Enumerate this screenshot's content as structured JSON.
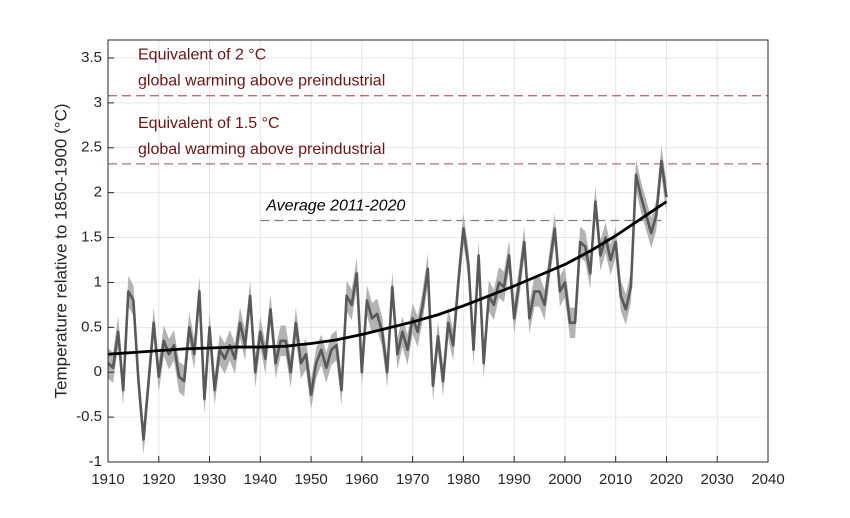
{
  "chart_data": {
    "type": "line",
    "ylabel": "Temperature relative to 1850-1900 (°C)",
    "xlim": [
      1910,
      2040
    ],
    "ylim": [
      -1,
      3.7
    ],
    "xticks": [
      1910,
      1920,
      1930,
      1940,
      1950,
      1960,
      1970,
      1980,
      1990,
      2000,
      2010,
      2020,
      2030,
      2040
    ],
    "yticks": [
      -1,
      -0.5,
      0,
      0.5,
      1,
      1.5,
      2,
      2.5,
      3,
      3.5
    ],
    "grid": true,
    "series": [
      {
        "color": "#595959",
        "band_color": "#b3b3b3",
        "error": 0.17,
        "x": [
          1910,
          1911,
          1912,
          1913,
          1914,
          1915,
          1916,
          1917,
          1918,
          1919,
          1920,
          1921,
          1922,
          1923,
          1924,
          1925,
          1926,
          1927,
          1928,
          1929,
          1930,
          1931,
          1932,
          1933,
          1934,
          1935,
          1936,
          1937,
          1938,
          1939,
          1940,
          1941,
          1942,
          1943,
          1944,
          1945,
          1946,
          1947,
          1948,
          1949,
          1950,
          1951,
          1952,
          1953,
          1954,
          1955,
          1956,
          1957,
          1958,
          1959,
          1960,
          1961,
          1962,
          1963,
          1964,
          1965,
          1966,
          1967,
          1968,
          1969,
          1970,
          1971,
          1972,
          1973,
          1974,
          1975,
          1976,
          1977,
          1978,
          1979,
          1980,
          1981,
          1982,
          1983,
          1984,
          1985,
          1986,
          1987,
          1988,
          1989,
          1990,
          1991,
          1992,
          1993,
          1994,
          1995,
          1996,
          1997,
          1998,
          1999,
          2000,
          2001,
          2002,
          2003,
          2004,
          2005,
          2006,
          2007,
          2008,
          2009,
          2010,
          2011,
          2012,
          2013,
          2014,
          2015,
          2016,
          2017,
          2018,
          2019,
          2020
        ],
        "values": [
          0.1,
          0.05,
          0.45,
          -0.2,
          0.9,
          0.8,
          -0.1,
          -0.75,
          -0.1,
          0.55,
          -0.05,
          0.35,
          0.2,
          0.3,
          -0.05,
          -0.1,
          0.5,
          0.2,
          0.9,
          -0.3,
          0.5,
          -0.2,
          0.25,
          0.15,
          0.3,
          0.15,
          0.55,
          0.3,
          0.85,
          0.0,
          0.45,
          0.15,
          0.7,
          0.1,
          0.35,
          0.35,
          0.0,
          0.55,
          0.1,
          0.2,
          -0.25,
          0.1,
          0.25,
          0.05,
          0.25,
          0.3,
          -0.2,
          0.85,
          0.75,
          1.1,
          0.0,
          0.8,
          0.6,
          0.65,
          0.45,
          0.0,
          0.95,
          0.2,
          0.45,
          0.25,
          0.6,
          0.45,
          0.75,
          1.15,
          -0.15,
          0.4,
          -0.1,
          0.55,
          0.3,
          1.0,
          1.6,
          1.2,
          0.25,
          1.3,
          0.1,
          0.85,
          0.75,
          1.0,
          0.95,
          1.3,
          0.6,
          1.0,
          1.45,
          0.6,
          0.9,
          0.9,
          0.75,
          1.2,
          1.6,
          0.9,
          1.0,
          0.55,
          0.55,
          1.45,
          1.4,
          1.1,
          1.9,
          1.3,
          1.5,
          1.25,
          1.45,
          0.85,
          0.7,
          0.95,
          2.2,
          1.95,
          1.75,
          1.55,
          1.75,
          2.35,
          1.95
        ]
      },
      {
        "color": "#000000",
        "x": [
          1910,
          1915,
          1920,
          1925,
          1930,
          1935,
          1940,
          1945,
          1950,
          1955,
          1960,
          1965,
          1970,
          1975,
          1980,
          1985,
          1990,
          1995,
          2000,
          2005,
          2010,
          2015,
          2020
        ],
        "values": [
          0.2,
          0.22,
          0.24,
          0.26,
          0.27,
          0.28,
          0.28,
          0.29,
          0.32,
          0.36,
          0.42,
          0.49,
          0.56,
          0.64,
          0.74,
          0.85,
          0.96,
          1.08,
          1.2,
          1.35,
          1.52,
          1.71,
          1.9
        ]
      }
    ],
    "reference_lines": [
      {
        "y": 3.08,
        "x": [
          1910,
          2040
        ],
        "color": "#b5707a",
        "text_color": "#6e1414",
        "labels": [
          "Equivalent of 2 °C",
          "global warming above preindustrial"
        ]
      },
      {
        "y": 2.32,
        "x": [
          1910,
          2040
        ],
        "color": "#b5707a",
        "text_color": "#6e1414",
        "labels": [
          "Equivalent of 1.5 °C",
          "global warming above preindustrial"
        ]
      },
      {
        "y": 1.69,
        "x": [
          1940,
          2020
        ],
        "color": "#7f7f7f",
        "text_color": "#000000",
        "italic": true,
        "labels": [
          "Average 2011-2020"
        ]
      }
    ]
  }
}
